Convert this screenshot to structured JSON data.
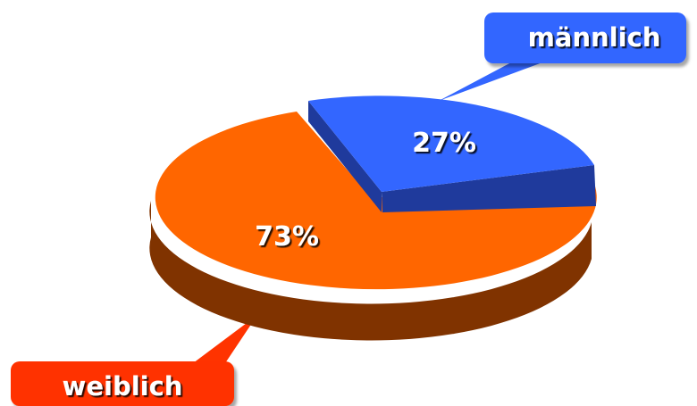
{
  "chart_data": {
    "type": "pie",
    "title": "",
    "slices": [
      {
        "label": "männlich",
        "value": 27,
        "value_label": "27%",
        "color": "#3366ff",
        "side_color": "#1f3a9c"
      },
      {
        "label": "weiblich",
        "value": 73,
        "value_label": "73%",
        "color": "#ff6600",
        "side_color": "#803300"
      }
    ],
    "callout_colors": {
      "männlich": "#3366ff",
      "weiblich": "#ff3300"
    },
    "style": "3d-exploded"
  }
}
